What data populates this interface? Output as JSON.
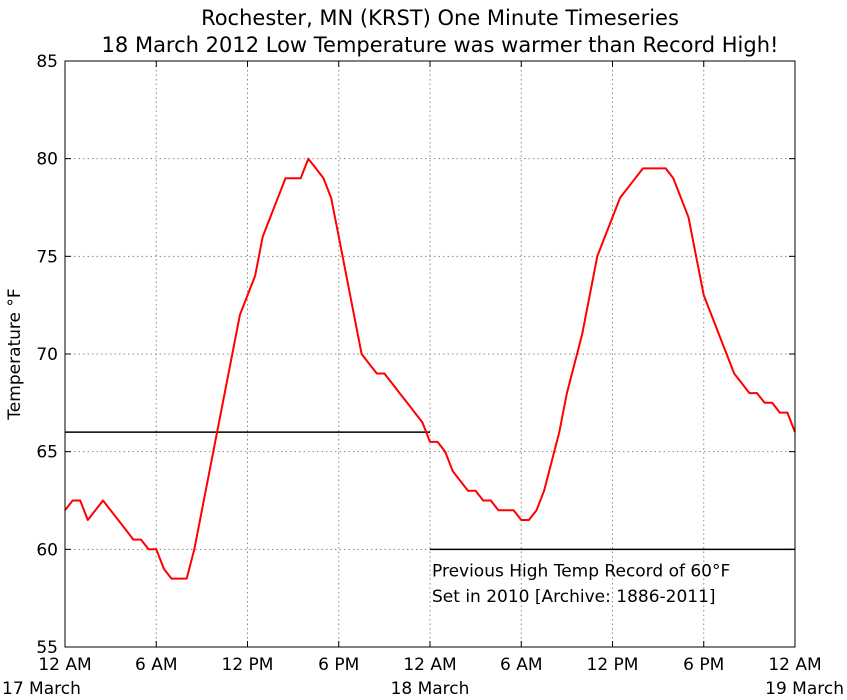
{
  "chart_data": {
    "type": "line",
    "title": "Rochester, MN (KRST) One Minute Timeseries",
    "subtitle": "18 March 2012 Low Temperature was warmer than Record High!",
    "ylabel": "Temperature °F",
    "xlabel": "",
    "ylim": [
      55,
      85
    ],
    "yticks": [
      55,
      60,
      65,
      70,
      75,
      80,
      85
    ],
    "xlim": [
      0,
      48
    ],
    "x_unit": "hours since 12 AM 17 March",
    "xticks": [
      {
        "x": 0,
        "label": "12 AM",
        "date": "17 March"
      },
      {
        "x": 6,
        "label": "6 AM",
        "date": ""
      },
      {
        "x": 12,
        "label": "12 PM",
        "date": ""
      },
      {
        "x": 18,
        "label": "6 PM",
        "date": ""
      },
      {
        "x": 24,
        "label": "12 AM",
        "date": "18 March"
      },
      {
        "x": 30,
        "label": "6 AM",
        "date": ""
      },
      {
        "x": 36,
        "label": "12 PM",
        "date": ""
      },
      {
        "x": 42,
        "label": "6 PM",
        "date": ""
      },
      {
        "x": 48,
        "label": "12 AM",
        "date": "19 March"
      }
    ],
    "grid": true,
    "series": [
      {
        "name": "",
        "color": "#ff0000",
        "x": [
          0,
          0.5,
          1,
          1.5,
          2,
          2.5,
          3,
          3.5,
          4,
          4.5,
          5,
          5.5,
          6,
          6.5,
          7,
          7.5,
          8,
          8.5,
          9,
          9.5,
          10,
          10.5,
          11,
          11.5,
          12,
          12.5,
          13,
          13.5,
          14,
          14.5,
          15,
          15.5,
          16,
          16.5,
          17,
          17.5,
          18,
          18.5,
          19,
          19.5,
          20,
          20.5,
          21,
          21.5,
          22,
          22.5,
          23,
          23.5,
          24,
          24.5,
          25,
          25.5,
          26,
          26.5,
          27,
          27.5,
          28,
          28.5,
          29,
          29.5,
          30,
          30.5,
          31,
          31.5,
          32,
          32.5,
          33,
          33.5,
          34,
          34.5,
          35,
          35.5,
          36,
          36.5,
          37,
          37.5,
          38,
          38.5,
          39,
          39.5,
          40,
          40.5,
          41,
          41.5,
          42,
          42.5,
          43,
          43.5,
          44,
          44.5,
          45,
          45.5,
          46,
          46.5,
          47,
          47.5,
          48
        ],
        "y": [
          62,
          62.5,
          62.5,
          61.5,
          62,
          62.5,
          62,
          61.5,
          61,
          60.5,
          60.5,
          60,
          60,
          59,
          58.5,
          58.5,
          58.5,
          60,
          62,
          64,
          66,
          68,
          70,
          72,
          73,
          74,
          76,
          77,
          78,
          79,
          79,
          79,
          80,
          79.5,
          79,
          78,
          76,
          74,
          72,
          70,
          69.5,
          69,
          69,
          68.5,
          68,
          67.5,
          67,
          66.5,
          65.5,
          65.5,
          65,
          64,
          63.5,
          63,
          63,
          62.5,
          62.5,
          62,
          62,
          62,
          61.5,
          61.5,
          62,
          63,
          64.5,
          66,
          68,
          69.5,
          71,
          73,
          75,
          76,
          77,
          78,
          78.5,
          79,
          79.5,
          79.5,
          79.5,
          79.5,
          79,
          78,
          77,
          75,
          73,
          72,
          71,
          70,
          69,
          68.5,
          68,
          68,
          67.5,
          67.5,
          67,
          67,
          66
        ]
      }
    ],
    "reference_lines": [
      {
        "y": 66,
        "x0": 0,
        "x1": 24
      },
      {
        "y": 60,
        "x0": 24,
        "x1": 48
      }
    ],
    "annotations": [
      {
        "text": "Previous High Temp Record of 60°F",
        "x": 24,
        "y": 58.6
      },
      {
        "text": "Set in 2010 [Archive: 1886-2011]",
        "x": 24,
        "y": 57.3
      }
    ]
  }
}
